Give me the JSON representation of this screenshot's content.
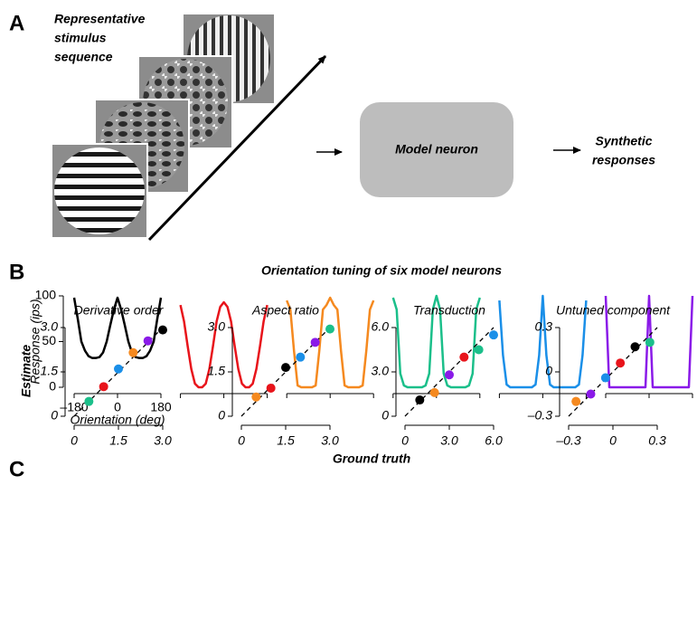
{
  "panel_labels": [
    "A",
    "B",
    "C"
  ],
  "diagram": {
    "stimulus_label": [
      "Representative",
      "stimulus",
      "sequence"
    ],
    "model": "Model neuron",
    "output": [
      "Synthetic",
      "responses"
    ]
  },
  "tuning_title": "Orientation tuning of six model neurons",
  "scatter_xlabel": "Ground truth",
  "scatter_ylabel": "Estimate",
  "chart_data": [
    {
      "type": "line",
      "tick_labels": true,
      "xlabel": "Orientation (deg)",
      "ylabel": "Response (ips)",
      "x": [
        -180,
        -165,
        -150,
        -135,
        -120,
        -105,
        -90,
        -75,
        -60,
        -45,
        -30,
        -15,
        0,
        15,
        30,
        45,
        60,
        75,
        90,
        105,
        120,
        135,
        150,
        165,
        180
      ],
      "xlim": [
        -180,
        180
      ],
      "xticks": [
        {
          "value": -180,
          "label": "–180"
        },
        0,
        180
      ],
      "ylim": [
        0,
        100
      ],
      "yticks": [
        0,
        50,
        100
      ],
      "series": [
        {
          "color": "#000000",
          "values": [
            98,
            75,
            50,
            40,
            34,
            32,
            32,
            33,
            38,
            50,
            68,
            85,
            98,
            85,
            68,
            50,
            38,
            33,
            32,
            32,
            34,
            40,
            50,
            75,
            98
          ]
        }
      ]
    },
    {
      "type": "line",
      "tick_labels": false,
      "x": [
        -180,
        -165,
        -150,
        -135,
        -120,
        -105,
        -90,
        -75,
        -60,
        -45,
        -30,
        -15,
        0,
        15,
        30,
        45,
        60,
        75,
        90,
        105,
        120,
        135,
        150,
        165,
        180
      ],
      "xlim": [
        -180,
        180
      ],
      "xticks": [
        -180,
        0,
        180
      ],
      "ylim": [
        0,
        100
      ],
      "series": [
        {
          "color": "#e8141b",
          "values": [
            90,
            72,
            45,
            20,
            4,
            0,
            0,
            4,
            20,
            45,
            72,
            88,
            93,
            88,
            72,
            45,
            20,
            4,
            0,
            0,
            4,
            20,
            45,
            72,
            90
          ]
        }
      ]
    },
    {
      "type": "line",
      "tick_labels": false,
      "x": [
        -180,
        -165,
        -150,
        -135,
        -120,
        -105,
        -90,
        -75,
        -60,
        -45,
        -30,
        -15,
        0,
        15,
        30,
        45,
        60,
        75,
        90,
        105,
        120,
        135,
        150,
        165,
        180
      ],
      "xlim": [
        -180,
        180
      ],
      "xticks": [
        -180,
        0,
        180
      ],
      "ylim": [
        0,
        100
      ],
      "series": [
        {
          "color": "#f5891f",
          "values": [
            95,
            85,
            40,
            2,
            0,
            0,
            0,
            0,
            2,
            40,
            85,
            90,
            98,
            90,
            85,
            40,
            2,
            0,
            0,
            0,
            0,
            2,
            40,
            85,
            95
          ]
        }
      ]
    },
    {
      "type": "line",
      "tick_labels": false,
      "x": [
        -180,
        -165,
        -150,
        -135,
        -120,
        -105,
        -90,
        -75,
        -60,
        -45,
        -30,
        -15,
        0,
        15,
        30,
        45,
        60,
        75,
        90,
        105,
        120,
        135,
        150,
        165,
        180
      ],
      "xlim": [
        -180,
        180
      ],
      "xticks": [
        -180,
        0,
        180
      ],
      "ylim": [
        0,
        100
      ],
      "series": [
        {
          "color": "#1bbf8a",
          "values": [
            98,
            85,
            15,
            2,
            0,
            0,
            0,
            0,
            0,
            2,
            15,
            85,
            100,
            85,
            15,
            2,
            0,
            0,
            0,
            0,
            0,
            2,
            15,
            85,
            98
          ]
        }
      ]
    },
    {
      "type": "line",
      "tick_labels": false,
      "x": [
        -180,
        -165,
        -150,
        -135,
        -120,
        -105,
        -90,
        -75,
        -60,
        -45,
        -30,
        -15,
        0,
        15,
        30,
        45,
        60,
        75,
        90,
        105,
        120,
        135,
        150,
        165,
        180
      ],
      "xlim": [
        -180,
        180
      ],
      "xticks": [
        -180,
        0,
        180
      ],
      "ylim": [
        0,
        100
      ],
      "series": [
        {
          "color": "#1a8fe8",
          "values": [
            95,
            35,
            3,
            0,
            0,
            0,
            0,
            0,
            0,
            0,
            3,
            35,
            100,
            35,
            3,
            0,
            0,
            0,
            0,
            0,
            0,
            0,
            3,
            35,
            95
          ]
        }
      ]
    },
    {
      "type": "line",
      "tick_labels": false,
      "x": [
        -180,
        -165,
        -150,
        -135,
        -120,
        -105,
        -90,
        -75,
        -60,
        -45,
        -30,
        -15,
        0,
        15,
        30,
        45,
        60,
        75,
        90,
        105,
        120,
        135,
        150,
        165,
        180
      ],
      "xlim": [
        -180,
        180
      ],
      "xticks": [
        -180,
        0,
        180
      ],
      "ylim": [
        0,
        100
      ],
      "series": [
        {
          "color": "#8a1ae8",
          "values": [
            100,
            0,
            0,
            0,
            0,
            0,
            0,
            0,
            0,
            0,
            0,
            0,
            100,
            0,
            0,
            0,
            0,
            0,
            0,
            0,
            0,
            0,
            0,
            0,
            100
          ]
        }
      ]
    },
    {
      "type": "scatter",
      "title": "Derivative order",
      "x": [
        0.5,
        1,
        1.5,
        2,
        2.5,
        3
      ],
      "y": [
        0.5,
        1,
        1.6,
        2.15,
        2.55,
        2.92
      ],
      "colors": [
        "#1bbf8a",
        "#e8141b",
        "#1a8fe8",
        "#f5891f",
        "#8a1ae8",
        "#000000"
      ],
      "xlim": [
        0,
        3
      ],
      "ylim": [
        0,
        3
      ],
      "xticks": [
        0,
        1.5,
        {
          "value": 3,
          "label": "3.0"
        }
      ],
      "yticks": [
        0,
        1.5,
        {
          "value": 3,
          "label": "3.0"
        }
      ]
    },
    {
      "type": "scatter",
      "title": "Aspect ratio",
      "x": [
        0.5,
        1,
        1.5,
        2,
        2.5,
        3
      ],
      "y": [
        0.65,
        0.95,
        1.65,
        2,
        2.5,
        2.95
      ],
      "colors": [
        "#f5891f",
        "#e8141b",
        "#000000",
        "#1a8fe8",
        "#8a1ae8",
        "#1bbf8a"
      ],
      "xlim": [
        0,
        3
      ],
      "ylim": [
        0,
        3
      ],
      "xticks": [
        0,
        1.5,
        {
          "value": 3,
          "label": "3.0"
        }
      ],
      "yticks": [
        0,
        1.5,
        {
          "value": 3,
          "label": "3.0"
        }
      ]
    },
    {
      "type": "scatter",
      "title": "Transduction",
      "x": [
        1,
        2,
        3,
        4,
        5,
        6
      ],
      "y": [
        1.1,
        1.6,
        2.8,
        4,
        4.5,
        5.5
      ],
      "colors": [
        "#000000",
        "#f5891f",
        "#8a1ae8",
        "#e8141b",
        "#1bbf8a",
        "#1a8fe8"
      ],
      "xlim": [
        0,
        6
      ],
      "ylim": [
        0,
        6
      ],
      "xticks": [
        0,
        {
          "value": 3,
          "label": "3.0"
        },
        {
          "value": 6,
          "label": "6.0"
        }
      ],
      "yticks": [
        0,
        {
          "value": 3,
          "label": "3.0"
        },
        {
          "value": 6,
          "label": "6.0"
        }
      ]
    },
    {
      "type": "scatter",
      "title": "Untuned component",
      "x": [
        -0.25,
        -0.15,
        -0.05,
        0.05,
        0.15,
        0.25
      ],
      "y": [
        -0.2,
        -0.15,
        -0.04,
        0.06,
        0.17,
        0.2
      ],
      "colors": [
        "#f5891f",
        "#8a1ae8",
        "#1a8fe8",
        "#e8141b",
        "#000000",
        "#1bbf8a"
      ],
      "xlim": [
        -0.3,
        0.3
      ],
      "ylim": [
        -0.3,
        0.3
      ],
      "xticks": [
        {
          "value": -0.3,
          "label": "–0.3"
        },
        0,
        0.3
      ],
      "yticks": [
        {
          "value": -0.3,
          "label": "–0.3"
        },
        0,
        0.3
      ]
    }
  ]
}
